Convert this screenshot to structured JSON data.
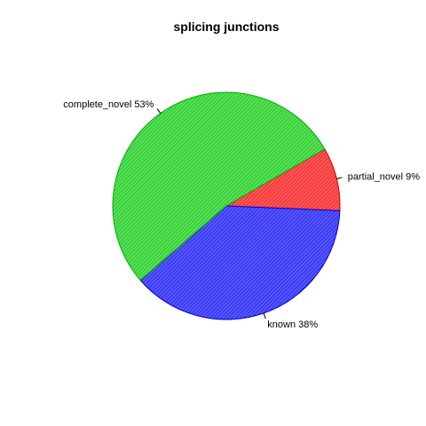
{
  "chart_data": {
    "type": "pie",
    "title": "splicing junctions",
    "slices": [
      {
        "label": "partial_novel 9%",
        "value": 9,
        "color": "#ff4d4d",
        "edge_color": "#cc0000"
      },
      {
        "label": "known 38%",
        "value": 38,
        "color": "#4d4dff",
        "edge_color": "#0000cc"
      },
      {
        "label": "complete_novel 53%",
        "value": 53,
        "color": "#4ddd4d",
        "edge_color": "#00aa00"
      }
    ],
    "start_angle_deg": 30,
    "direction": "clockwise",
    "legend": "none"
  }
}
